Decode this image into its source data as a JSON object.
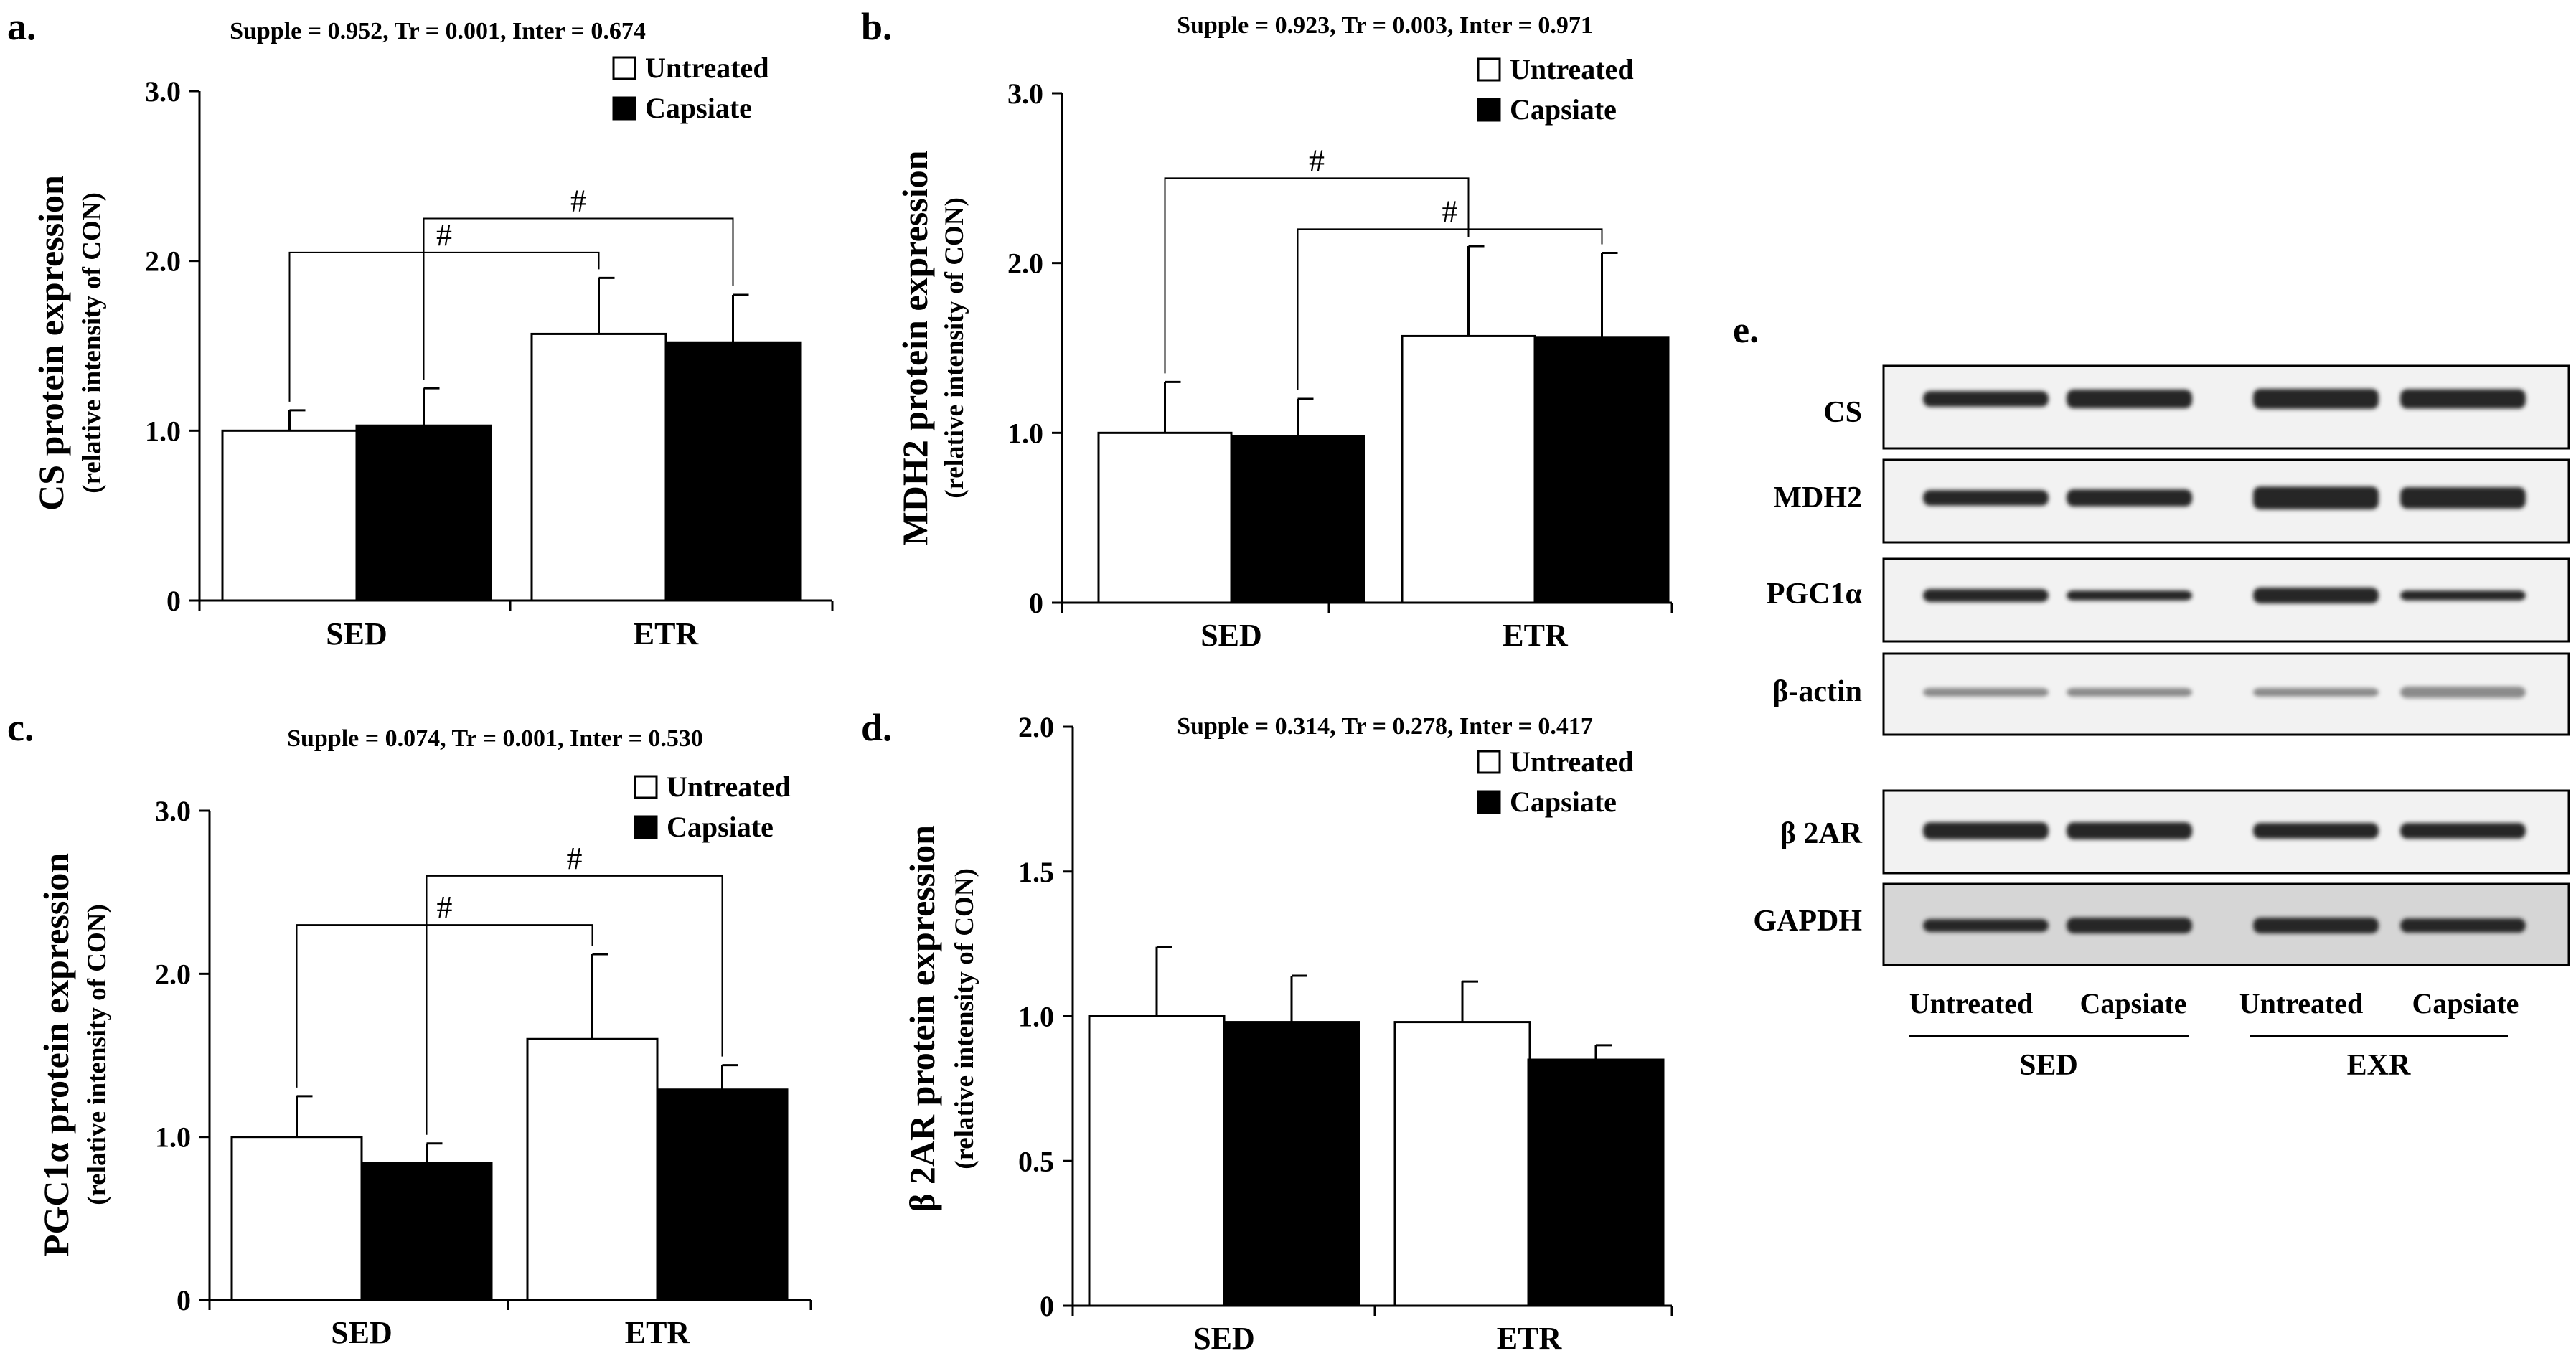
{
  "panel_e": {
    "label": "e.",
    "rows": [
      "CS",
      "MDH2",
      "PGC1α",
      "β-actin",
      "β 2AR",
      "GAPDH"
    ],
    "lanes": [
      "Untreated",
      "Capsiate",
      "Untreated",
      "Capsiate"
    ],
    "groups": [
      "SED",
      "EXR"
    ]
  },
  "chart_data": [
    {
      "panel": "a.",
      "type": "bar",
      "title": "Supple = 0.952, Tr = 0.001, Inter = 0.674",
      "ylabel": "CS protein expression",
      "ylabel2": "(relative intensity of CON)",
      "categories": [
        "SED",
        "ETR"
      ],
      "yticks": [
        "0",
        "1.0",
        "2.0",
        "3.0"
      ],
      "tick_values": [
        0,
        1,
        2,
        3
      ],
      "ylim": [
        0,
        3
      ],
      "series": [
        {
          "name": "Untreated",
          "color": "#ffffff",
          "values": [
            1.0,
            1.57
          ],
          "errors": [
            0.12,
            0.33
          ]
        },
        {
          "name": "Capsiate",
          "color": "#000000",
          "values": [
            1.03,
            1.52
          ],
          "errors": [
            0.22,
            0.28
          ]
        }
      ],
      "annotations": [
        {
          "text": "#",
          "from": [
            0,
            0
          ],
          "to": [
            1,
            0
          ],
          "level": 2.05
        },
        {
          "text": "#",
          "from": [
            0,
            1
          ],
          "to": [
            1,
            1
          ],
          "level": 2.25
        }
      ]
    },
    {
      "panel": "b.",
      "type": "bar",
      "title": "Supple = 0.923, Tr = 0.003, Inter = 0.971",
      "ylabel": "MDH2 protein expression",
      "ylabel2": "(relative intensity of CON)",
      "categories": [
        "SED",
        "ETR"
      ],
      "yticks": [
        "0",
        "1.0",
        "2.0",
        "3.0"
      ],
      "tick_values": [
        0,
        1,
        2,
        3
      ],
      "ylim": [
        0,
        3
      ],
      "series": [
        {
          "name": "Untreated",
          "color": "#ffffff",
          "values": [
            1.0,
            1.57
          ],
          "errors": [
            0.3,
            0.53
          ]
        },
        {
          "name": "Capsiate",
          "color": "#000000",
          "values": [
            0.98,
            1.56
          ],
          "errors": [
            0.22,
            0.5
          ]
        }
      ],
      "annotations": [
        {
          "text": "#",
          "from": [
            0,
            0
          ],
          "to": [
            1,
            0
          ],
          "level": 2.5
        },
        {
          "text": "#",
          "from": [
            0,
            1
          ],
          "to": [
            1,
            1
          ],
          "level": 2.2
        }
      ]
    },
    {
      "panel": "c.",
      "type": "bar",
      "title": "Supple = 0.074, Tr = 0.001, Inter = 0.530",
      "ylabel": "PGC1α protein expression",
      "ylabel2": "(relative intensity of CON)",
      "categories": [
        "SED",
        "ETR"
      ],
      "yticks": [
        "0",
        "1.0",
        "2.0",
        "3.0"
      ],
      "tick_values": [
        0,
        1,
        2,
        3
      ],
      "ylim": [
        0,
        3
      ],
      "series": [
        {
          "name": "Untreated",
          "color": "#ffffff",
          "values": [
            1.0,
            1.6
          ],
          "errors": [
            0.25,
            0.52
          ]
        },
        {
          "name": "Capsiate",
          "color": "#000000",
          "values": [
            0.84,
            1.29
          ],
          "errors": [
            0.12,
            0.15
          ]
        }
      ],
      "annotations": [
        {
          "text": "#",
          "from": [
            0,
            0
          ],
          "to": [
            1,
            0
          ],
          "level": 2.3
        },
        {
          "text": "#",
          "from": [
            0,
            1
          ],
          "to": [
            1,
            1
          ],
          "level": 2.6
        }
      ]
    },
    {
      "panel": "d.",
      "type": "bar",
      "title": "Supple = 0.314, Tr = 0.278, Inter = 0.417",
      "ylabel": "β 2AR protein expression",
      "ylabel2": "(relative intensity of CON)",
      "categories": [
        "SED",
        "ETR"
      ],
      "yticks": [
        "0",
        "0.5",
        "1.0",
        "1.5",
        "2.0"
      ],
      "tick_values": [
        0,
        0.5,
        1,
        1.5,
        2
      ],
      "ylim": [
        0,
        2
      ],
      "series": [
        {
          "name": "Untreated",
          "color": "#ffffff",
          "values": [
            1.0,
            0.98
          ],
          "errors": [
            0.24,
            0.14
          ]
        },
        {
          "name": "Capsiate",
          "color": "#000000",
          "values": [
            0.98,
            0.85
          ],
          "errors": [
            0.16,
            0.05
          ]
        }
      ],
      "annotations": []
    }
  ]
}
